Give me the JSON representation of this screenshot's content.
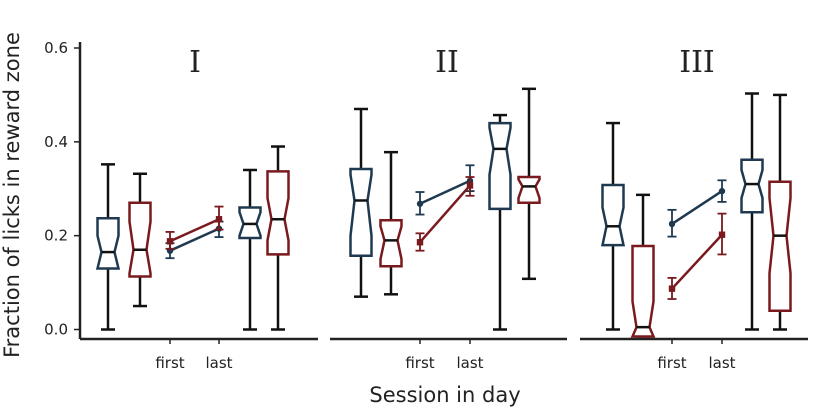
{
  "chart_data": {
    "type": "box",
    "ylabel": "Fraction of licks in reward zone",
    "xlabel": "Session in day",
    "ylim": [
      0.0,
      0.6
    ],
    "yticks": [
      "0.0",
      "0.2",
      "0.4",
      "0.6"
    ],
    "xtick_labels": [
      "first",
      "last"
    ],
    "colors": {
      "navy": "#1f3a50",
      "red": "#7a1a1e",
      "axis": "#222222"
    },
    "panels": [
      {
        "title": "I",
        "boxes": [
          {
            "color": "navy",
            "q1": 0.13,
            "median": 0.165,
            "q3": 0.237,
            "notch_lo": 0.13,
            "notch_hi": 0.2,
            "whisker_lo": 0.0,
            "whisker_hi": 0.352
          },
          {
            "color": "red",
            "q1": 0.113,
            "median": 0.17,
            "q3": 0.27,
            "notch_lo": 0.12,
            "notch_hi": 0.23,
            "whisker_lo": 0.05,
            "whisker_hi": 0.332
          },
          {
            "color": "navy",
            "q1": 0.195,
            "median": 0.225,
            "q3": 0.26,
            "notch_lo": 0.2,
            "notch_hi": 0.25,
            "whisker_lo": 0.0,
            "whisker_hi": 0.34
          },
          {
            "color": "red",
            "q1": 0.16,
            "median": 0.235,
            "q3": 0.337,
            "notch_lo": 0.19,
            "notch_hi": 0.28,
            "whisker_lo": 0.0,
            "whisker_hi": 0.39
          }
        ],
        "lines": [
          {
            "color": "navy",
            "marker": "circle",
            "first": 0.168,
            "last": 0.215,
            "first_err": [
              0.152,
              0.184
            ],
            "last_err": [
              0.197,
              0.23
            ]
          },
          {
            "color": "red",
            "marker": "square",
            "first": 0.188,
            "last": 0.235,
            "first_err": [
              0.172,
              0.208
            ],
            "last_err": [
              0.213,
              0.262
            ]
          }
        ]
      },
      {
        "title": "II",
        "boxes": [
          {
            "color": "navy",
            "q1": 0.157,
            "median": 0.275,
            "q3": 0.342,
            "notch_lo": 0.2,
            "notch_hi": 0.33,
            "whisker_lo": 0.07,
            "whisker_hi": 0.47
          },
          {
            "color": "red",
            "q1": 0.135,
            "median": 0.19,
            "q3": 0.233,
            "notch_lo": 0.15,
            "notch_hi": 0.22,
            "whisker_lo": 0.075,
            "whisker_hi": 0.378
          },
          {
            "color": "navy",
            "q1": 0.257,
            "median": 0.385,
            "q3": 0.44,
            "notch_lo": 0.33,
            "notch_hi": 0.43,
            "whisker_lo": 0.0,
            "whisker_hi": 0.457
          },
          {
            "color": "red",
            "q1": 0.27,
            "median": 0.305,
            "q3": 0.325,
            "notch_lo": 0.28,
            "notch_hi": 0.32,
            "whisker_lo": 0.108,
            "whisker_hi": 0.513
          }
        ],
        "lines": [
          {
            "color": "navy",
            "marker": "circle",
            "first": 0.268,
            "last": 0.317,
            "first_err": [
              0.245,
              0.293
            ],
            "last_err": [
              0.295,
              0.35
            ]
          },
          {
            "color": "red",
            "marker": "square",
            "first": 0.186,
            "last": 0.307,
            "first_err": [
              0.168,
              0.205
            ],
            "last_err": [
              0.285,
              0.325
            ]
          }
        ]
      },
      {
        "title": "III",
        "boxes": [
          {
            "color": "navy",
            "q1": 0.18,
            "median": 0.22,
            "q3": 0.308,
            "notch_lo": 0.18,
            "notch_hi": 0.26,
            "whisker_lo": 0.0,
            "whisker_hi": 0.44
          },
          {
            "color": "red",
            "q1": -0.015,
            "median": 0.005,
            "q3": 0.178,
            "notch_lo": -0.015,
            "notch_hi": 0.06,
            "whisker_lo": -0.015,
            "whisker_hi": 0.287
          },
          {
            "color": "navy",
            "q1": 0.25,
            "median": 0.31,
            "q3": 0.362,
            "notch_lo": 0.28,
            "notch_hi": 0.34,
            "whisker_lo": 0.0,
            "whisker_hi": 0.503
          },
          {
            "color": "red",
            "q1": 0.04,
            "median": 0.2,
            "q3": 0.315,
            "notch_lo": 0.12,
            "notch_hi": 0.28,
            "whisker_lo": 0.0,
            "whisker_hi": 0.5
          }
        ],
        "lines": [
          {
            "color": "navy",
            "marker": "circle",
            "first": 0.225,
            "last": 0.295,
            "first_err": [
              0.198,
              0.255
            ],
            "last_err": [
              0.272,
              0.318
            ]
          },
          {
            "color": "red",
            "marker": "square",
            "first": 0.087,
            "last": 0.202,
            "first_err": [
              0.065,
              0.11
            ],
            "last_err": [
              0.16,
              0.247
            ]
          }
        ]
      }
    ]
  }
}
